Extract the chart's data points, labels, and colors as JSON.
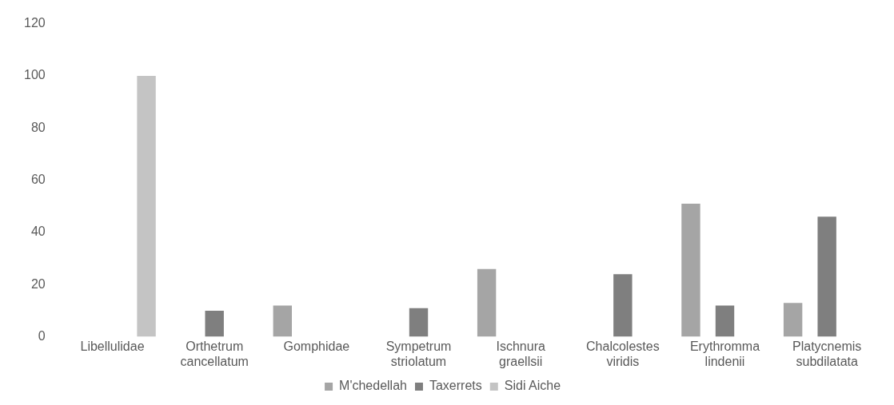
{
  "chart_data": {
    "type": "bar",
    "categories": [
      "Libellulidae",
      "Orthetrum cancellatum",
      "Gomphidae",
      "Sympetrum striolatum",
      "Ischnura graellsii",
      "Chalcolestes viridis",
      "Erythromma lindenii",
      "Platycnemis subdilatata"
    ],
    "series": [
      {
        "name": "M'chedellah",
        "color": "#a5a5a5",
        "values": [
          null,
          null,
          12,
          null,
          26,
          null,
          51,
          13
        ]
      },
      {
        "name": "Taxerrets",
        "color": "#7f7f7f",
        "values": [
          null,
          10,
          null,
          11,
          null,
          24,
          12,
          46
        ]
      },
      {
        "name": "Sidi Aiche",
        "color": "#c4c4c4",
        "values": [
          100,
          null,
          null,
          null,
          null,
          null,
          null,
          null
        ]
      }
    ],
    "ylim": [
      0,
      120
    ],
    "yticks": [
      0,
      20,
      40,
      60,
      80,
      100,
      120
    ],
    "grid": false,
    "legend": "bottom"
  }
}
